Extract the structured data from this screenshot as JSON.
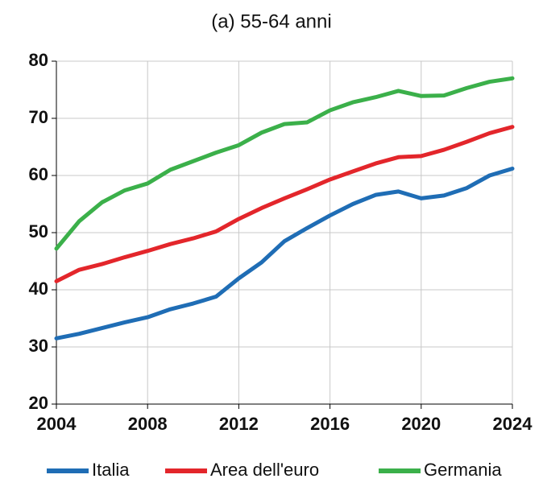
{
  "chart_data": {
    "type": "line",
    "title": "(a) 55-64 anni",
    "x": [
      2004,
      2005,
      2006,
      2007,
      2008,
      2009,
      2010,
      2011,
      2012,
      2013,
      2014,
      2015,
      2016,
      2017,
      2018,
      2019,
      2020,
      2021,
      2022,
      2023,
      2024
    ],
    "series": [
      {
        "name": "Italia",
        "color": "#1f6db5",
        "values": [
          31.5,
          32.3,
          33.3,
          34.3,
          35.2,
          36.6,
          37.6,
          38.8,
          42.0,
          44.8,
          48.5,
          50.8,
          53.0,
          55.0,
          56.6,
          57.2,
          56.0,
          56.5,
          57.8,
          60.0,
          61.2
        ]
      },
      {
        "name": "Area dell'euro",
        "color": "#e3262b",
        "values": [
          41.5,
          43.5,
          44.5,
          45.7,
          46.8,
          48.0,
          49.0,
          50.2,
          52.4,
          54.3,
          56.0,
          57.6,
          59.3,
          60.7,
          62.1,
          63.2,
          63.4,
          64.5,
          65.9,
          67.4,
          68.5
        ]
      },
      {
        "name": "Germania",
        "color": "#3bb04a",
        "values": [
          47.2,
          52.0,
          55.3,
          57.4,
          58.6,
          61.0,
          62.5,
          64.0,
          65.3,
          67.5,
          69.0,
          69.3,
          71.4,
          72.8,
          73.7,
          74.8,
          73.9,
          74.0,
          75.3,
          76.4,
          77.0
        ]
      }
    ],
    "xlim": [
      2004,
      2024
    ],
    "xticks": [
      2004,
      2008,
      2012,
      2016,
      2020,
      2024
    ],
    "ylim": [
      20,
      80
    ],
    "yticks": [
      20,
      30,
      40,
      50,
      60,
      70,
      80
    ],
    "grid": true
  }
}
